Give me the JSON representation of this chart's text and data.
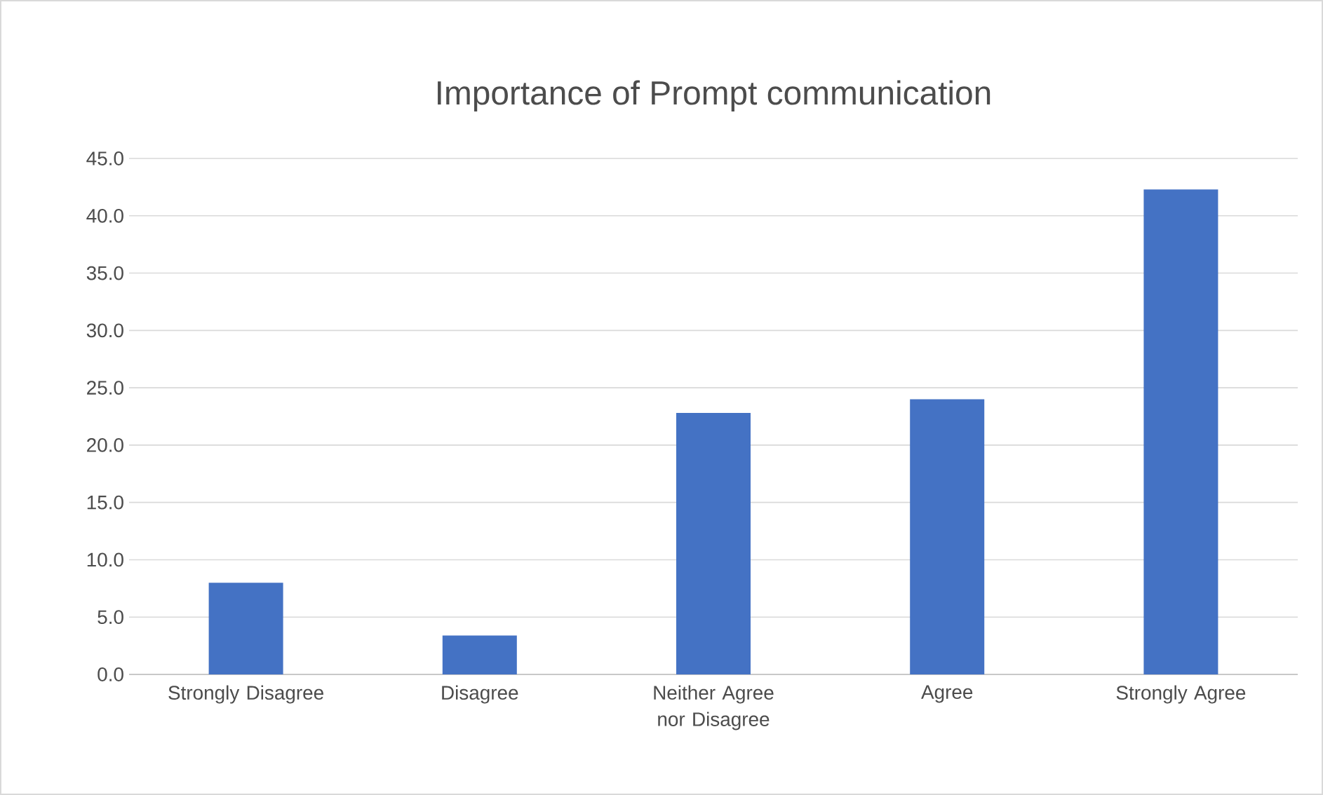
{
  "chart_data": {
    "type": "bar",
    "title": "Importance of Prompt communication",
    "categories": [
      "Strongly Disagree",
      "Disagree",
      "Neither Agree nor Disagree",
      "Agree",
      "Strongly Agree"
    ],
    "values": [
      8.0,
      3.4,
      22.8,
      24.0,
      42.3
    ],
    "color": "#4472c4",
    "ylim": [
      0,
      45
    ],
    "yticks": [
      {
        "value": 0,
        "label": "0.0"
      },
      {
        "value": 5,
        "label": "5.0"
      },
      {
        "value": 10,
        "label": "10.0"
      },
      {
        "value": 15,
        "label": "15.0"
      },
      {
        "value": 20,
        "label": "20.0"
      },
      {
        "value": 25,
        "label": "25.0"
      },
      {
        "value": 30,
        "label": "30.0"
      },
      {
        "value": 35,
        "label": "35.0"
      },
      {
        "value": 40,
        "label": "40.0"
      },
      {
        "value": 45,
        "label": "45.0"
      }
    ],
    "grid": "y"
  }
}
